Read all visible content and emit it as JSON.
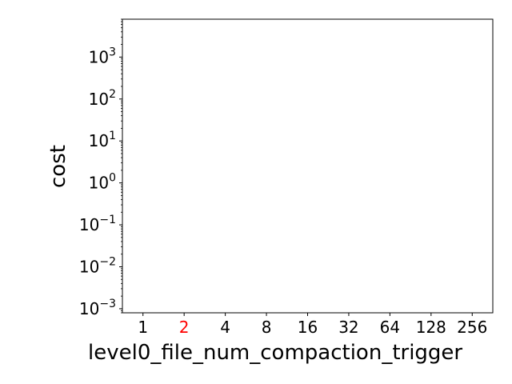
{
  "chart_data": {
    "type": "scatter",
    "title": "",
    "xlabel": "level0_file_num_compaction_trigger",
    "ylabel": "cost",
    "x_scale": "categorical",
    "x_ticks": [
      "1",
      "2",
      "4",
      "8",
      "16",
      "32",
      "64",
      "128",
      "256"
    ],
    "highlighted_x_tick": "2",
    "y_scale": "log",
    "y_tick_exponents": [
      -3,
      -2,
      -1,
      0,
      1,
      2,
      3
    ],
    "y_tick_base": "10",
    "ylim": [
      0.0008,
      8000
    ],
    "series": [],
    "grid": false,
    "legend": "none",
    "colors": {
      "axis": "#000000",
      "highlight_tick": "#ff0000",
      "background": "#ffffff"
    }
  }
}
